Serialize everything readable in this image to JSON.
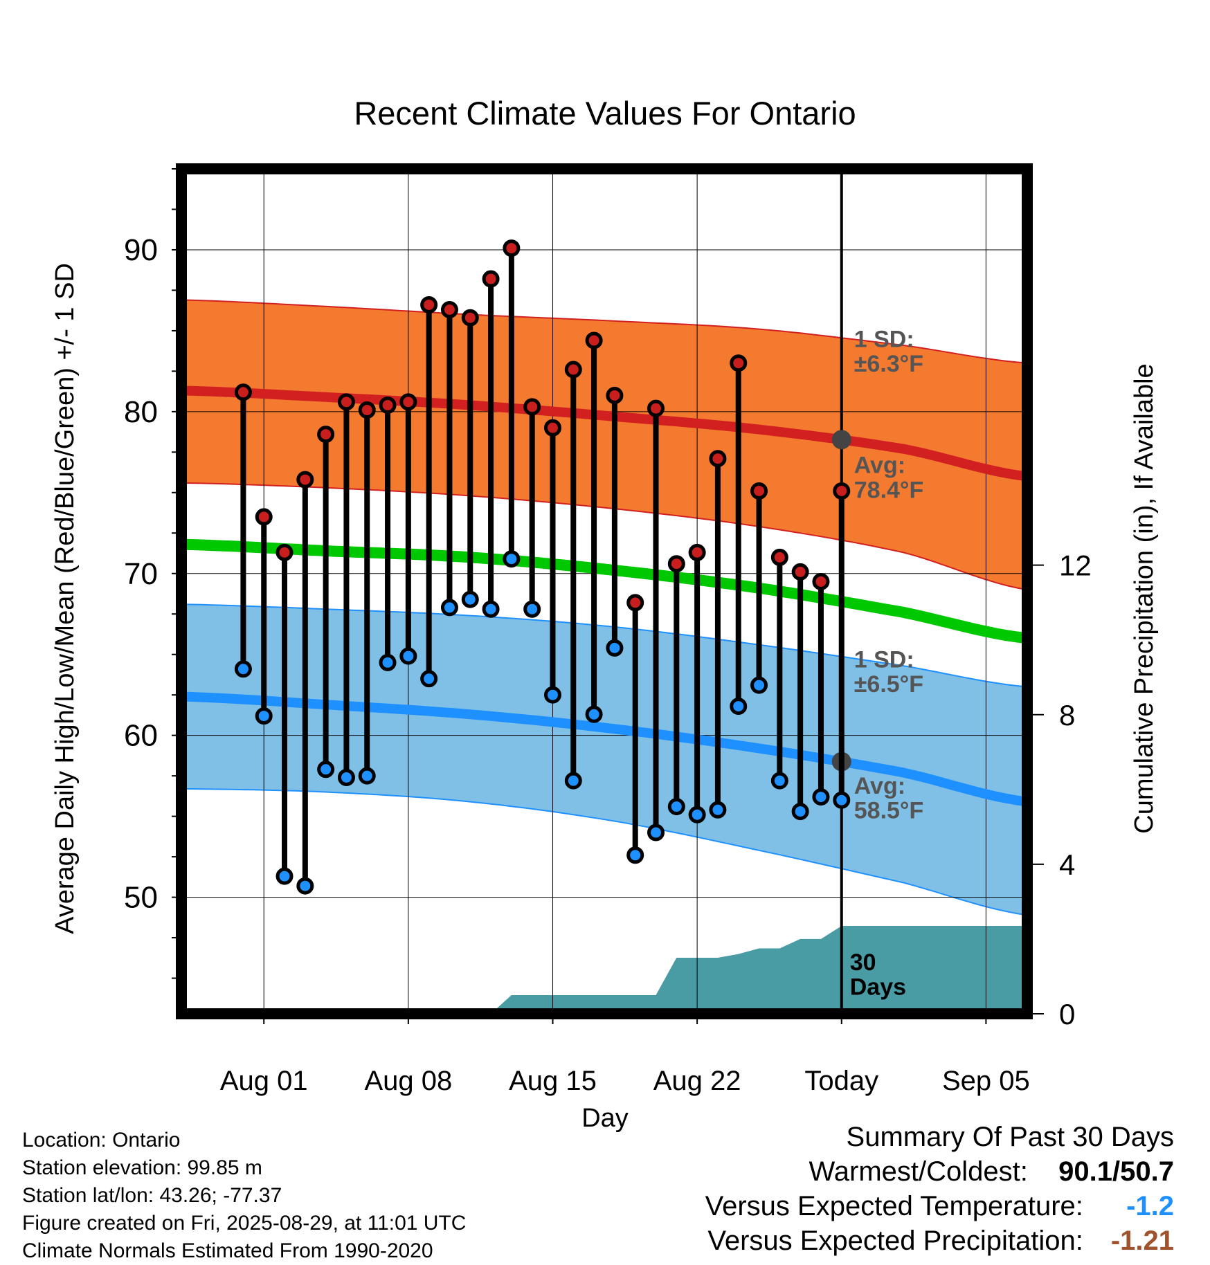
{
  "chart_data": {
    "type": "line",
    "title": "Recent Climate Values For Ontario",
    "xlabel": "Day",
    "ylabel": "Average Daily High/Low/Mean (Red/Blue/Green) +/- 1 SD",
    "y2label": "Cumulative Precipitation (in), If Available",
    "xlim": [
      "2025-07-28",
      "2025-09-07"
    ],
    "ylim": [
      42.8,
      95
    ],
    "y2lim": [
      0,
      22.6
    ],
    "x_tick_labels": [
      {
        "date": "2025-08-01",
        "label": "Aug 01"
      },
      {
        "date": "2025-08-08",
        "label": "Aug 08"
      },
      {
        "date": "2025-08-15",
        "label": "Aug 15"
      },
      {
        "date": "2025-08-22",
        "label": "Aug 22"
      },
      {
        "date": "2025-08-29",
        "label": "Today"
      },
      {
        "date": "2025-09-05",
        "label": "Sep 05"
      }
    ],
    "y_ticks": [
      50,
      60,
      70,
      80,
      90
    ],
    "y2_ticks": [
      0,
      4,
      8,
      12
    ],
    "grid": true,
    "today": "2025-08-29",
    "normals": {
      "dates": [
        "2025-07-28",
        "2025-08-04",
        "2025-08-11",
        "2025-08-18",
        "2025-08-25",
        "2025-09-01",
        "2025-09-07"
      ],
      "avg_high": [
        81.3,
        80.9,
        80.4,
        79.7,
        78.9,
        77.7,
        76.0
      ],
      "avg_high_upper": [
        86.9,
        86.5,
        86.0,
        85.6,
        85.1,
        84.1,
        83.0
      ],
      "avg_high_lower": [
        75.6,
        75.3,
        74.8,
        74.0,
        72.9,
        71.3,
        69.0
      ],
      "avg_mean": [
        71.8,
        71.4,
        71.0,
        70.2,
        69.1,
        67.6,
        66.0
      ],
      "avg_low": [
        62.4,
        61.9,
        61.3,
        60.4,
        59.2,
        57.7,
        55.9
      ],
      "avg_low_upper": [
        68.1,
        67.8,
        67.4,
        66.7,
        65.6,
        64.3,
        63.0
      ],
      "avg_low_lower": [
        56.7,
        56.5,
        55.9,
        54.7,
        52.9,
        50.9,
        48.9
      ]
    },
    "series": [
      {
        "name": "High",
        "color": "#c81e1e",
        "dates": [
          "2025-07-31",
          "2025-08-01",
          "2025-08-02",
          "2025-08-03",
          "2025-08-04",
          "2025-08-05",
          "2025-08-06",
          "2025-08-07",
          "2025-08-08",
          "2025-08-09",
          "2025-08-10",
          "2025-08-11",
          "2025-08-12",
          "2025-08-13",
          "2025-08-14",
          "2025-08-15",
          "2025-08-16",
          "2025-08-17",
          "2025-08-18",
          "2025-08-19",
          "2025-08-20",
          "2025-08-21",
          "2025-08-22",
          "2025-08-23",
          "2025-08-24",
          "2025-08-25",
          "2025-08-26",
          "2025-08-27",
          "2025-08-28",
          "2025-08-29"
        ],
        "values": [
          81.2,
          73.5,
          71.3,
          75.8,
          78.6,
          80.6,
          80.1,
          80.4,
          80.6,
          86.6,
          86.3,
          85.8,
          88.2,
          90.1,
          80.3,
          79.0,
          82.6,
          84.4,
          81.0,
          68.2,
          80.2,
          70.6,
          71.3,
          77.1,
          83.0,
          75.1,
          71.0,
          70.1,
          69.5,
          75.1
        ]
      },
      {
        "name": "Low",
        "color": "#1e90ff",
        "dates": [
          "2025-07-31",
          "2025-08-01",
          "2025-08-02",
          "2025-08-03",
          "2025-08-04",
          "2025-08-05",
          "2025-08-06",
          "2025-08-07",
          "2025-08-08",
          "2025-08-09",
          "2025-08-10",
          "2025-08-11",
          "2025-08-12",
          "2025-08-13",
          "2025-08-14",
          "2025-08-15",
          "2025-08-16",
          "2025-08-17",
          "2025-08-18",
          "2025-08-19",
          "2025-08-20",
          "2025-08-21",
          "2025-08-22",
          "2025-08-23",
          "2025-08-24",
          "2025-08-25",
          "2025-08-26",
          "2025-08-27",
          "2025-08-28",
          "2025-08-29"
        ],
        "values": [
          64.1,
          61.2,
          51.3,
          50.7,
          57.9,
          57.4,
          57.5,
          64.5,
          64.9,
          63.5,
          67.9,
          68.4,
          67.8,
          70.9,
          67.8,
          62.5,
          57.2,
          61.3,
          65.4,
          52.6,
          54.0,
          55.6,
          55.1,
          55.4,
          61.8,
          63.1,
          57.2,
          55.3,
          56.2,
          56.0
        ]
      }
    ],
    "precipitation": {
      "dates": [
        "2025-08-12",
        "2025-08-13",
        "2025-08-20",
        "2025-08-21",
        "2025-08-23",
        "2025-08-24",
        "2025-08-25",
        "2025-08-26",
        "2025-08-27",
        "2025-08-28",
        "2025-08-29",
        "2025-09-07"
      ],
      "values": [
        0.0,
        0.5,
        0.5,
        1.5,
        1.5,
        1.6,
        1.75,
        1.75,
        2.0,
        2.0,
        2.35,
        2.35
      ]
    },
    "annotations": {
      "high_sd": "1 SD:\n±6.3°F",
      "high_avg": "Avg:\n78.4°F",
      "low_sd": "1 SD:\n±6.5°F",
      "low_avg": "Avg:\n58.5°F",
      "precip_label": "30\nDays"
    }
  },
  "footer": {
    "lines": [
      "Location: Ontario",
      "Station elevation: 99.85 m",
      "Station lat/lon: 43.26; -77.37",
      "Figure created on Fri, 2025-08-29, at 11:01 UTC",
      "Climate Normals Estimated From 1990-2020"
    ]
  },
  "summary": {
    "title": "Summary Of Past 30 Days",
    "warmest_coldest_label": "Warmest/Coldest:",
    "warmest_coldest_value": "90.1/50.7",
    "temp_label": "Versus Expected Temperature:",
    "temp_value": "-1.2",
    "temp_color": "#1e90ff",
    "precip_label": "Versus Expected Precipitation:",
    "precip_value": "-1.21",
    "precip_color": "#a0522d"
  },
  "colors": {
    "high_band": "#f47a30",
    "high_line": "#d22020",
    "low_band": "#80c0e6",
    "low_line": "#1e90ff",
    "mean_line": "#00c800",
    "precip_fill": "#4a9ca4",
    "annotation_text": "#555555",
    "today_marker": "#444444"
  }
}
